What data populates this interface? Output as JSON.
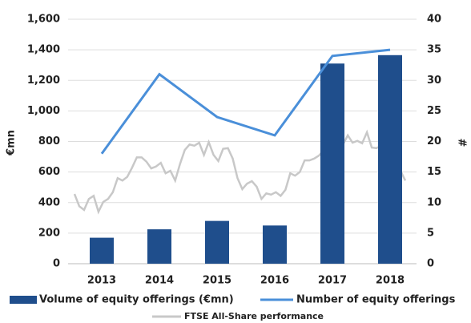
{
  "chart_data": {
    "type": "bar",
    "categories": [
      "2013",
      "2014",
      "2015",
      "2016",
      "2017",
      "2018"
    ],
    "ylabel": "€mn",
    "y2label": "#",
    "ylim": [
      0,
      1600
    ],
    "yticks": [
      0,
      200,
      400,
      600,
      800,
      {
        "value": 1000,
        "label": "1,000"
      },
      {
        "value": 1200,
        "label": "1,200"
      },
      {
        "value": 1400,
        "label": "1,400"
      },
      {
        "value": 1600,
        "label": "1,600"
      }
    ],
    "y2lim": [
      0,
      40
    ],
    "y2ticks": [
      0,
      5,
      10,
      15,
      20,
      25,
      30,
      35,
      40
    ],
    "grid": true,
    "series": [
      {
        "name": "Volume of equity offerings (€mn)",
        "type": "bar",
        "color": "#1f4e8c",
        "values": [
          170,
          225,
          280,
          250,
          1310,
          1365
        ]
      },
      {
        "name": "Number of equity offerings",
        "type": "line",
        "axis": "y2",
        "color": "#4a8fd9",
        "values": [
          18,
          31,
          24,
          21,
          34,
          35
        ]
      }
    ],
    "trend": {
      "name": "FTSE All-Share performance",
      "axis": "y2",
      "color": "#c8c8c8",
      "values": [
        11.4,
        9.4,
        8.8,
        10.6,
        11.1,
        8.5,
        10.1,
        10.6,
        11.7,
        14.0,
        13.6,
        14.2,
        15.7,
        17.4,
        17.4,
        16.7,
        15.6,
        15.9,
        16.5,
        14.8,
        15.2,
        13.6,
        16.3,
        18.6,
        19.5,
        19.3,
        19.8,
        17.8,
        19.9,
        17.8,
        16.8,
        18.8,
        18.9,
        17.2,
        14.0,
        12.2,
        13.1,
        13.5,
        12.6,
        10.6,
        11.5,
        11.3,
        11.7,
        11.1,
        12.1,
        14.8,
        14.4,
        15.0,
        16.9,
        16.9,
        17.2,
        17.7,
        18.6,
        19.9,
        20.2,
        19.4,
        19.5,
        21.0,
        19.8,
        20.1,
        19.7,
        21.5,
        19.0,
        18.9,
        19.4,
        16.7,
        17.2,
        15.0,
        15.2,
        13.6
      ]
    }
  }
}
